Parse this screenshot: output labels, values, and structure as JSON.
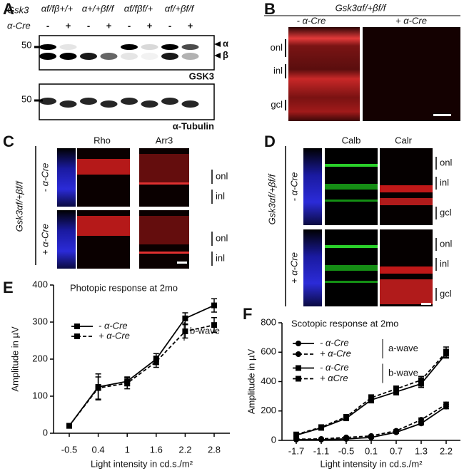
{
  "panels": {
    "A": {
      "label": "A",
      "gene": "Gsk3",
      "cre": "α-Cre",
      "genotypes": [
        "αf/fβ+/+",
        "α+/+βf/f",
        "αf/fβf/+",
        "αf/+βf/f"
      ],
      "signs": [
        "-",
        "+",
        "-",
        "+",
        "-",
        "+",
        "-",
        "+"
      ],
      "marker_top": "50",
      "marker_bottom": "50",
      "bands": [
        "α",
        "β"
      ],
      "blot_top": "GSK3",
      "blot_bottom": "α-Tubulin"
    },
    "B": {
      "label": "B",
      "genotype": "Gsk3αf/+βf/f",
      "columns": [
        "- α-Cre",
        "+ α-Cre"
      ],
      "layers": [
        "onl",
        "inl",
        "gcl"
      ]
    },
    "C": {
      "label": "C",
      "genotype": "Gsk3αf/+βf/f",
      "stains": [
        "Rho",
        "Arr3"
      ],
      "rows": [
        "- α-Cre",
        "+ α-Cre"
      ],
      "layers": [
        [
          "onl",
          "inl"
        ],
        [
          "onl",
          "inl"
        ]
      ]
    },
    "D": {
      "label": "D",
      "genotype": "Gsk3αf/+βf/f",
      "stains": [
        "Calb",
        "Calr"
      ],
      "rows": [
        "- α-Cre",
        "+ α-Cre"
      ],
      "layers": [
        [
          "onl",
          "inl",
          "gcl"
        ],
        [
          "onl",
          "inl",
          "gcl"
        ]
      ]
    }
  },
  "chart_data": [
    {
      "type": "line",
      "label": "E",
      "title": "Photopic response at 2mo",
      "x_label": "Light intensity in cd.s./m²",
      "y_label": "Amplitude in µV",
      "categories": [
        "-0.5",
        "0.4",
        "1",
        "1.6",
        "2.2",
        "2.8"
      ],
      "ylim": [
        0,
        400
      ],
      "yticks": [
        0,
        100,
        200,
        300,
        400
      ],
      "series_groups": [
        {
          "name": "b-wave",
          "series": [
            {
              "name": "- α-Cre",
              "color": "#000000",
              "marker": "square",
              "linestyle": "solid",
              "values": [
                20,
                125,
                140,
                200,
                310,
                345
              ],
              "errors": [
                5,
                35,
                12,
                15,
                15,
                18
              ]
            },
            {
              "name": "+ α-Cre",
              "color": "#000000",
              "marker": "square",
              "linestyle": "dashed",
              "values": [
                20,
                122,
                135,
                193,
                275,
                292
              ],
              "errors": [
                5,
                30,
                15,
                15,
                18,
                20
              ]
            }
          ]
        }
      ]
    },
    {
      "type": "line",
      "label": "F",
      "title": "Scotopic response at 2mo",
      "x_label": "Light intensity in cd.s./m²",
      "y_label": "Amplitude in µV",
      "categories": [
        "-1.7",
        "-1.1",
        "-0.5",
        "0.1",
        "0.7",
        "1.3",
        "2.2"
      ],
      "ylim": [
        0,
        800
      ],
      "yticks": [
        0,
        200,
        400,
        600,
        800
      ],
      "series_groups": [
        {
          "name": "a-wave",
          "series": [
            {
              "name": "- α-Cre",
              "color": "#000000",
              "marker": "circle",
              "linestyle": "solid",
              "values": [
                5,
                5,
                10,
                20,
                55,
                115,
                230
              ],
              "errors": [
                3,
                3,
                5,
                5,
                8,
                10,
                15
              ]
            },
            {
              "name": "+ α-Cre",
              "color": "#000000",
              "marker": "circle",
              "linestyle": "dashed",
              "values": [
                8,
                10,
                20,
                30,
                65,
                140,
                245
              ],
              "errors": [
                3,
                4,
                5,
                6,
                8,
                12,
                15
              ]
            }
          ]
        },
        {
          "name": "b-wave",
          "series": [
            {
              "name": "- α-Cre",
              "color": "#000000",
              "marker": "square",
              "linestyle": "solid",
              "values": [
                35,
                85,
                150,
                275,
                330,
                385,
                590
              ],
              "errors": [
                8,
                10,
                15,
                20,
                20,
                25,
                30
              ]
            },
            {
              "name": "+ αCre",
              "color": "#000000",
              "marker": "square",
              "linestyle": "dashed",
              "values": [
                40,
                90,
                160,
                290,
                350,
                410,
                600
              ],
              "errors": [
                8,
                10,
                15,
                20,
                20,
                25,
                35
              ]
            }
          ]
        }
      ]
    }
  ]
}
